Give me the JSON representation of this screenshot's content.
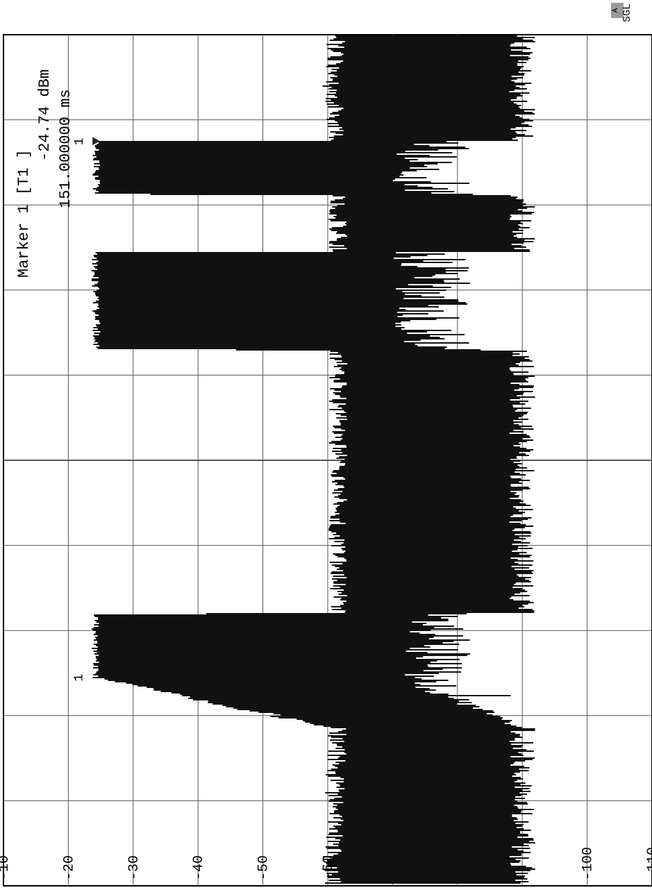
{
  "status": {
    "mode_badge": "A",
    "sweep_mode": "SGL"
  },
  "marker_readout": {
    "line1": "Marker 1 [T1 ]",
    "line2": "-24.74 dBm",
    "line3": "151.000000 ms"
  },
  "chart_data": {
    "type": "area",
    "title": "",
    "xlabel": "",
    "ylabel": "",
    "orientation": "rotated 90 degrees clockwise (time axis runs top to bottom, level axis left to right)",
    "y_ticks": [
      "-10",
      "-20",
      "-30",
      "-40",
      "-50",
      "-60",
      "-100",
      "-110"
    ],
    "ylim": [
      -120,
      -10
    ],
    "y_unit": "dBm",
    "x_unit": "ms",
    "xlim": [
      0,
      200
    ],
    "grid": true,
    "series": [
      {
        "x": [
          0,
          12,
          25,
          25.1,
          37.5,
          37.6,
          51,
          51.1,
          74,
          74.1,
          136,
          136.1,
          151,
          151.1,
          163,
          163.1,
          200
        ],
        "values": [
          -63,
          -62,
          -63,
          -24.8,
          -25,
          -63,
          -63,
          -24.7,
          -25,
          -63,
          -63,
          -24.8,
          -24.74,
          -25,
          -63,
          -63,
          -62
        ],
        "floor": [
          -88,
          -88,
          -88,
          -70,
          -70,
          -88,
          -88,
          -70,
          -70,
          -88,
          -88,
          -70,
          -70,
          -70,
          -88,
          -88,
          -88
        ]
      }
    ],
    "markers": [
      {
        "label": "1",
        "x": 151.0,
        "y": -24.74
      },
      {
        "label": "1",
        "x": 25.0,
        "y": -24.8
      }
    ]
  }
}
